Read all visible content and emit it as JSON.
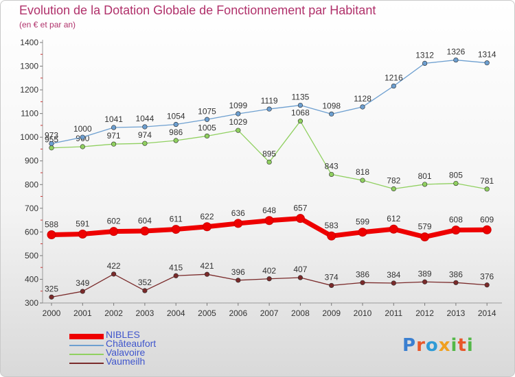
{
  "page": {
    "title": "Evolution de la Dotation Globale de Fonctionnement par Habitant",
    "subtitle": "(en € et par an)"
  },
  "logo": {
    "text": "Proxiti",
    "letters": [
      "P",
      "r",
      "o",
      "x",
      "i",
      "t",
      "i"
    ],
    "colors": [
      "#3a7fd0",
      "#e8572a",
      "#2f9bd6",
      "#f0a020",
      "#54b848",
      "#e8572a",
      "#54b848"
    ]
  },
  "chart_data": {
    "type": "line",
    "title": "Evolution de la Dotation Globale de Fonctionnement par Habitant",
    "subtitle": "(en € et par an)",
    "x": [
      2000,
      2001,
      2002,
      2003,
      2004,
      2005,
      2006,
      2007,
      2008,
      2009,
      2010,
      2011,
      2012,
      2013,
      2014
    ],
    "ylim": [
      300,
      1400
    ],
    "yticks": [
      300,
      400,
      500,
      600,
      700,
      800,
      900,
      1000,
      1100,
      1200,
      1300,
      1400
    ],
    "grid": false,
    "legend_position": "bottom-left",
    "series": [
      {
        "name": "NIBLES",
        "color": "#ee0000",
        "emphasis": true,
        "values": [
          588,
          591,
          602,
          604,
          611,
          622,
          636,
          648,
          657,
          583,
          599,
          612,
          579,
          608,
          609
        ]
      },
      {
        "name": "Châteaufort",
        "color": "#6d9fd0",
        "values": [
          973,
          1000,
          1041,
          1044,
          1054,
          1075,
          1099,
          1119,
          1135,
          1098,
          1128,
          1216,
          1312,
          1326,
          1314
        ]
      },
      {
        "name": "Valavoire",
        "color": "#90d060",
        "values": [
          955,
          960,
          971,
          974,
          986,
          1005,
          1029,
          895,
          1068,
          843,
          818,
          782,
          801,
          805,
          781
        ]
      },
      {
        "name": "Vaumeilh",
        "color": "#7a2a2a",
        "values": [
          325,
          349,
          422,
          352,
          415,
          421,
          396,
          402,
          407,
          374,
          386,
          384,
          389,
          386,
          376
        ]
      }
    ],
    "legend_text_color": "#3f55cc"
  }
}
